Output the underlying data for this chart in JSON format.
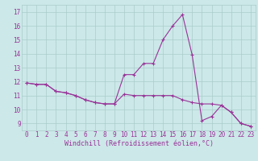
{
  "xlabel": "Windchill (Refroidissement éolien,°C)",
  "background_color": "#cce8e8",
  "line_color": "#993399",
  "grid_color": "#aacccc",
  "hours": [
    0,
    1,
    2,
    3,
    4,
    5,
    6,
    7,
    8,
    9,
    10,
    11,
    12,
    13,
    14,
    15,
    16,
    17,
    18,
    19,
    20,
    21,
    22,
    23
  ],
  "temp": [
    11.9,
    11.8,
    11.8,
    11.3,
    11.2,
    11.0,
    10.7,
    10.5,
    10.4,
    10.4,
    11.1,
    11.0,
    11.0,
    11.0,
    11.0,
    11.0,
    10.7,
    10.5,
    10.4,
    10.4,
    10.3,
    9.8,
    9.0,
    8.8
  ],
  "windchill": [
    11.9,
    11.8,
    11.8,
    11.3,
    11.2,
    11.0,
    10.7,
    10.5,
    10.4,
    10.4,
    12.5,
    12.5,
    13.3,
    13.3,
    15.0,
    16.0,
    16.8,
    13.9,
    9.2,
    9.5,
    10.3,
    9.8,
    9.0,
    8.8
  ],
  "ylim": [
    8.5,
    17.5
  ],
  "yticks": [
    9,
    10,
    11,
    12,
    13,
    14,
    15,
    16,
    17
  ],
  "xticks": [
    0,
    1,
    2,
    3,
    4,
    5,
    6,
    7,
    8,
    9,
    10,
    11,
    12,
    13,
    14,
    15,
    16,
    17,
    18,
    19,
    20,
    21,
    22,
    23
  ],
  "xlabel_fontsize": 6,
  "tick_fontsize": 5.5
}
